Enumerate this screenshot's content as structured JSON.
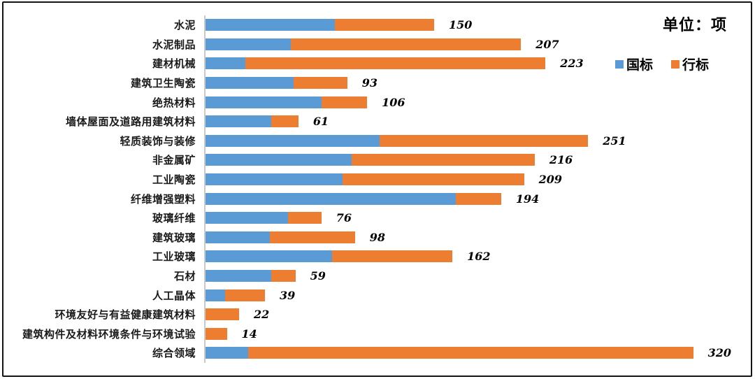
{
  "unit_title": "单位：项",
  "legend": [
    {
      "label": "国标",
      "color": "#5B9BD5"
    },
    {
      "label": "行标",
      "color": "#ED7D31"
    }
  ],
  "colors": {
    "guobiao_blue": "#5B9BD5",
    "hangbiao_orange": "#ED7D31",
    "axis_gray": "#c9c9c9",
    "frame_black": "#141414"
  },
  "chart_data": {
    "type": "bar",
    "orientation": "horizontal",
    "stacked": true,
    "unit": "项",
    "title": "单位：项",
    "legend_position": "top-right",
    "grid": false,
    "value_labels": "total shown bold-italic at end of each bar",
    "categories": [
      "水泥",
      "水泥制品",
      "建材机械",
      "建筑卫生陶瓷",
      "绝热材料",
      "墙体屋面及道路用建筑材料",
      "轻质装饰与装修",
      "非金属矿",
      "工业陶瓷",
      "纤维增强塑料",
      "玻璃纤维",
      "建筑玻璃",
      "工业玻璃",
      "石材",
      "人工晶体",
      "环境友好与有益健康建筑材料",
      "建筑构件及材料环境条件与环境试验",
      "综合领域"
    ],
    "series": [
      {
        "name": "国标",
        "color": "#5B9BD5",
        "values": [
          85,
          56,
          26,
          58,
          76,
          43,
          114,
          96,
          90,
          164,
          54,
          42,
          83,
          43,
          13,
          0,
          0,
          28
        ]
      },
      {
        "name": "行标",
        "color": "#ED7D31",
        "values": [
          65,
          151,
          197,
          35,
          30,
          18,
          137,
          120,
          119,
          30,
          22,
          56,
          79,
          16,
          26,
          22,
          14,
          292
        ]
      }
    ],
    "totals": [
      150,
      207,
      223,
      93,
      106,
      61,
      251,
      216,
      209,
      194,
      76,
      98,
      162,
      59,
      39,
      22,
      14,
      320
    ],
    "x_range": [
      0,
      330
    ]
  }
}
